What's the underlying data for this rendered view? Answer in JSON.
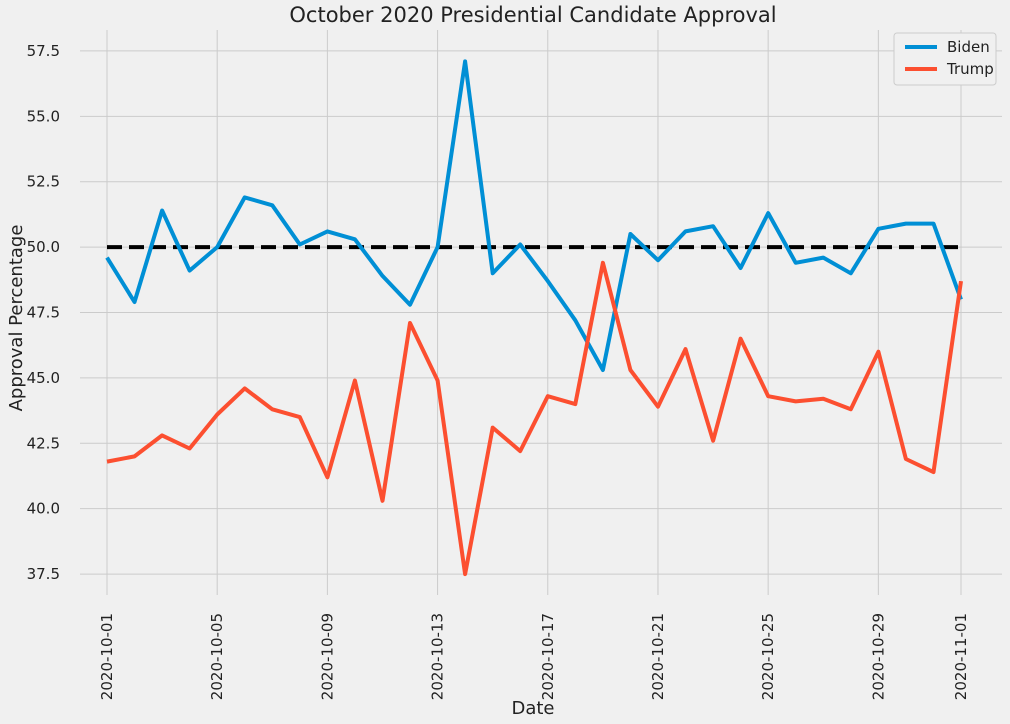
{
  "chart_data": {
    "type": "line",
    "title": "October 2020 Presidential Candidate Approval",
    "xlabel": "Date",
    "ylabel": "Approval Percentage",
    "x": [
      "2020-10-01",
      "2020-10-02",
      "2020-10-03",
      "2020-10-04",
      "2020-10-05",
      "2020-10-06",
      "2020-10-07",
      "2020-10-08",
      "2020-10-09",
      "2020-10-10",
      "2020-10-11",
      "2020-10-12",
      "2020-10-13",
      "2020-10-14",
      "2020-10-15",
      "2020-10-16",
      "2020-10-17",
      "2020-10-18",
      "2020-10-19",
      "2020-10-20",
      "2020-10-21",
      "2020-10-22",
      "2020-10-23",
      "2020-10-24",
      "2020-10-25",
      "2020-10-26",
      "2020-10-27",
      "2020-10-28",
      "2020-10-29",
      "2020-10-30",
      "2020-10-31",
      "2020-11-01"
    ],
    "x_ticks": [
      "2020-10-01",
      "2020-10-05",
      "2020-10-09",
      "2020-10-13",
      "2020-10-17",
      "2020-10-21",
      "2020-10-25",
      "2020-10-29",
      "2020-11-01"
    ],
    "y_ticks": [
      37.5,
      40.0,
      42.5,
      45.0,
      47.5,
      50.0,
      52.5,
      55.0,
      57.5
    ],
    "ylim": [
      36.7,
      58.3
    ],
    "grid": true,
    "legend_position": "top-right",
    "reference_line": {
      "y": 50.0,
      "color": "#000000",
      "style": "dashed"
    },
    "series": [
      {
        "name": "Biden",
        "color": "#008fd5",
        "values": [
          49.6,
          47.9,
          51.4,
          49.1,
          50.0,
          51.9,
          51.6,
          50.1,
          50.6,
          50.3,
          48.9,
          47.8,
          50.0,
          57.1,
          49.0,
          50.1,
          48.7,
          47.2,
          45.3,
          50.5,
          49.5,
          50.6,
          50.8,
          49.2,
          51.3,
          49.4,
          49.6,
          49.0,
          50.7,
          50.9,
          50.9,
          48.0
        ]
      },
      {
        "name": "Trump",
        "color": "#fc4f30",
        "values": [
          41.8,
          42.0,
          42.8,
          42.3,
          43.6,
          44.6,
          43.8,
          43.5,
          41.2,
          44.9,
          40.3,
          47.1,
          44.9,
          37.5,
          43.1,
          42.2,
          44.3,
          44.0,
          49.4,
          45.3,
          43.9,
          46.1,
          42.6,
          46.5,
          44.3,
          44.1,
          44.2,
          43.8,
          46.0,
          41.9,
          41.4,
          48.7
        ]
      }
    ]
  }
}
